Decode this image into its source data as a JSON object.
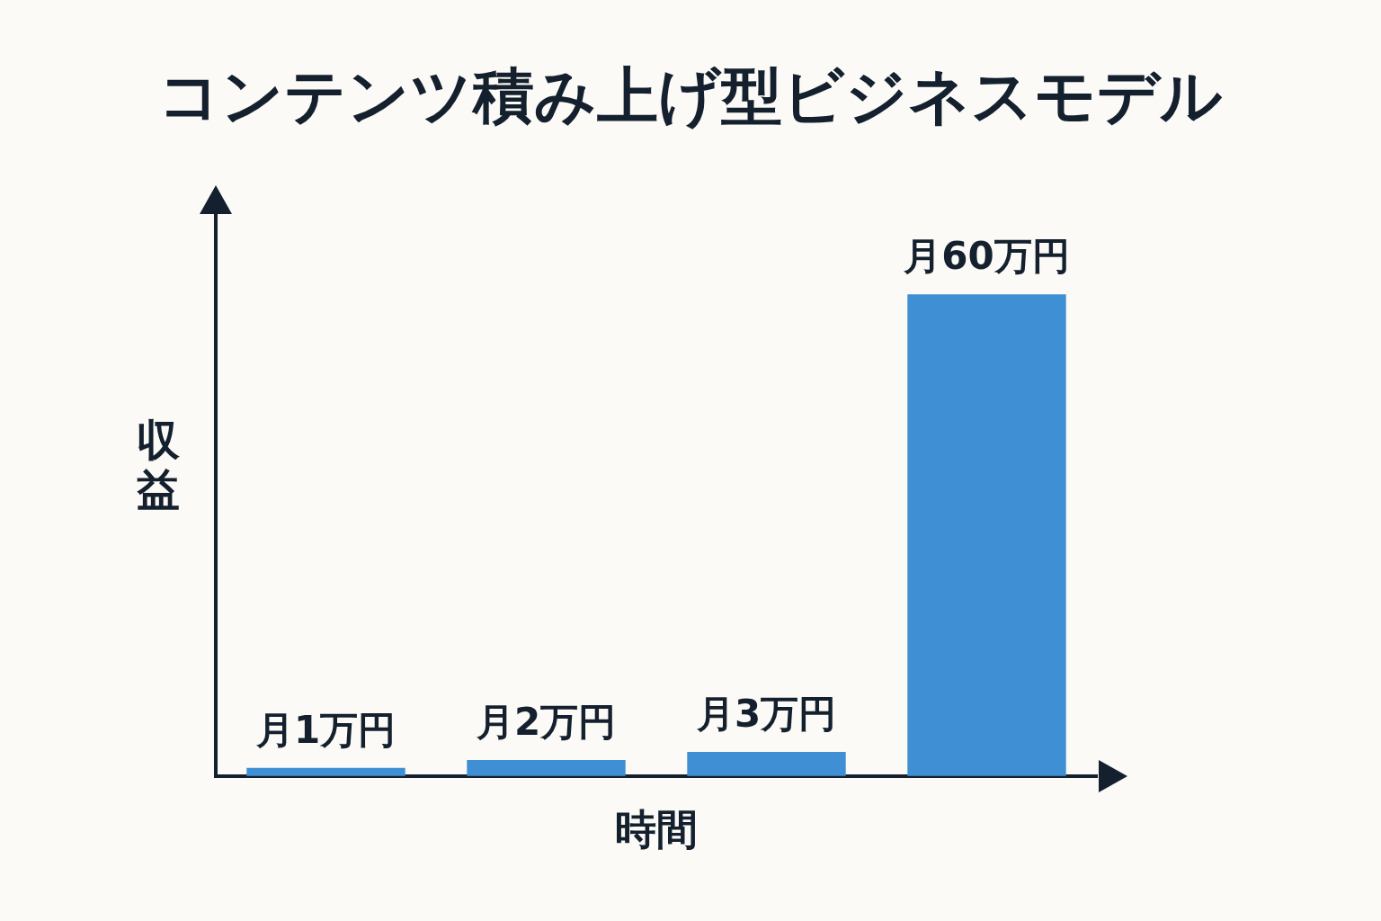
{
  "chart_data": {
    "type": "bar",
    "title": "コンテンツ積み上げ型ビジネスモデル",
    "xlabel": "時間",
    "ylabel": "収益",
    "categories": [
      null,
      null,
      null,
      null
    ],
    "values": [
      1,
      2,
      3,
      60
    ],
    "value_labels": [
      "月1万円",
      "月2万円",
      "月3万円",
      "月60万円"
    ],
    "color": "#3f8fd4",
    "tick_labels": false
  }
}
